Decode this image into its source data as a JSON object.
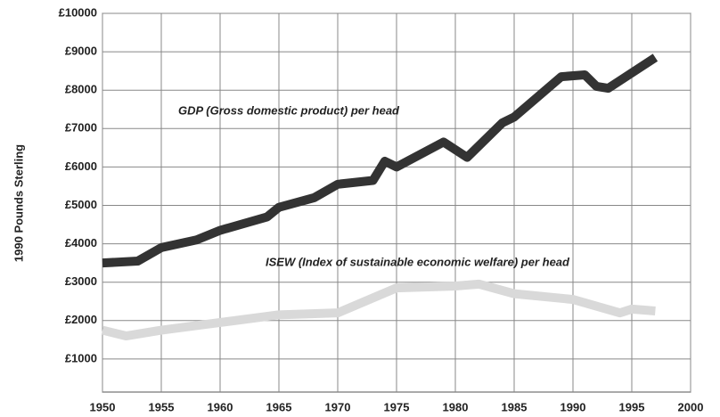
{
  "chart_data": {
    "type": "line",
    "ylabel": "1990 Pounds Sterling",
    "xlim": [
      1950,
      2000
    ],
    "xticks": [
      1950,
      1955,
      1960,
      1965,
      1970,
      1975,
      1980,
      1985,
      1990,
      1995,
      2000
    ],
    "ylim": [
      0,
      10000
    ],
    "yticks": [
      {
        "value": 1000,
        "label": "£1000"
      },
      {
        "value": 2000,
        "label": "£2000"
      },
      {
        "value": 3000,
        "label": "£3000"
      },
      {
        "value": 4000,
        "label": "£4000"
      },
      {
        "value": 5000,
        "label": "£5000"
      },
      {
        "value": 6000,
        "label": "£6000"
      },
      {
        "value": 7000,
        "label": "£7000"
      },
      {
        "value": 8000,
        "label": "£8000"
      },
      {
        "value": 9000,
        "label": "£9000"
      },
      {
        "value": 10000,
        "label": "£10000"
      }
    ],
    "grid": true,
    "series": [
      {
        "name": "GDP (Gross domestic product) per head",
        "color": "#333333",
        "x": [
          1950,
          1953,
          1955,
          1958,
          1960,
          1964,
          1965,
          1968,
          1970,
          1973,
          1974,
          1975,
          1979,
          1981,
          1984,
          1985,
          1989,
          1991,
          1992,
          1993,
          1997
        ],
        "values": [
          3500,
          3550,
          3900,
          4100,
          4350,
          4700,
          4950,
          5200,
          5550,
          5650,
          6150,
          6000,
          6650,
          6250,
          7150,
          7300,
          8350,
          8400,
          8100,
          8050,
          8850
        ]
      },
      {
        "name": "ISEW (Index of sustainable economic welfare) per head",
        "color": "#d9d9d9",
        "x": [
          1950,
          1952,
          1955,
          1960,
          1965,
          1970,
          1975,
          1980,
          1982,
          1985,
          1990,
          1994,
          1995,
          1997
        ],
        "values": [
          1750,
          1600,
          1750,
          1950,
          2150,
          2200,
          2850,
          2900,
          2950,
          2700,
          2550,
          2200,
          2300,
          2250
        ]
      }
    ]
  }
}
